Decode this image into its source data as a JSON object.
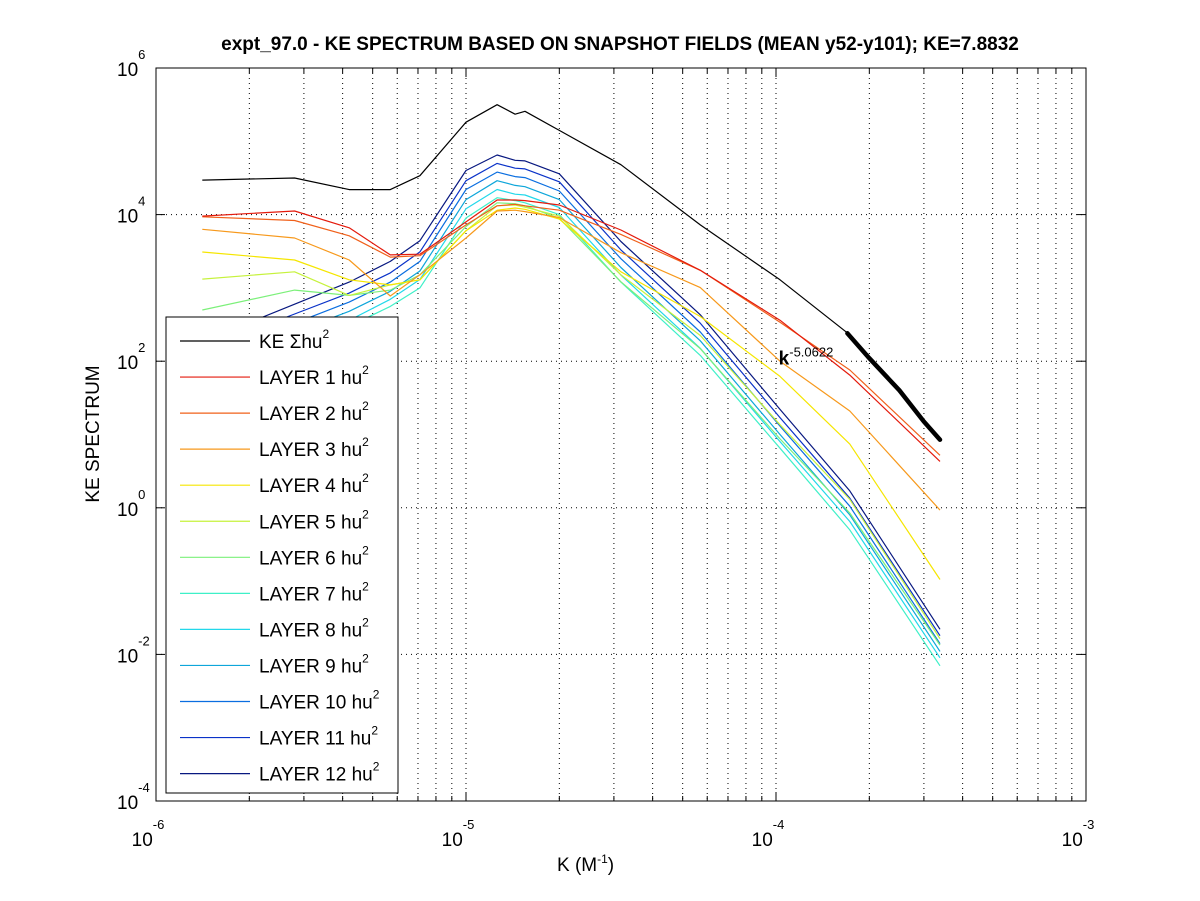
{
  "chart_data": {
    "type": "line",
    "title": "expt_97.0 - KE SPECTRUM BASED ON SNAPSHOT FIELDS (MEAN y52-y101); KE=7.8832",
    "xlabel": "K  (M",
    "xlabel_sup": "-1",
    "xlabel_close": ")",
    "ylabel": "KE SPECTRUM",
    "xscale": "log",
    "yscale": "log",
    "xlim": [
      1e-06,
      0.001
    ],
    "ylim": [
      0.0001,
      1000000.0
    ],
    "grid": true,
    "legend_position": "bottom-left",
    "x_ticks": [
      {
        "base": "10",
        "exp": "-6",
        "value": 1e-06
      },
      {
        "base": "10",
        "exp": "-5",
        "value": 1e-05
      },
      {
        "base": "10",
        "exp": "-4",
        "value": 0.0001
      },
      {
        "base": "10",
        "exp": "-3",
        "value": 0.001
      }
    ],
    "y_ticks": [
      {
        "base": "10",
        "exp": "6",
        "value": 1000000.0
      },
      {
        "base": "10",
        "exp": "4",
        "value": 10000.0
      },
      {
        "base": "10",
        "exp": "2",
        "value": 100.0
      },
      {
        "base": "10",
        "exp": "0",
        "value": 1.0
      },
      {
        "base": "10",
        "exp": "-2",
        "value": 0.01
      },
      {
        "base": "10",
        "exp": "-4",
        "value": 0.0001
      }
    ],
    "x": [
      1.41e-06,
      2.8e-06,
      4.2e-06,
      5.7e-06,
      7.1e-06,
      1e-05,
      1.26e-05,
      1.44e-05,
      1.55e-05,
      2e-05,
      3.16e-05,
      5.7e-05,
      0.000103,
      0.000173,
      0.000338
    ],
    "series": [
      {
        "name": "KE",
        "label": "KE Σhu",
        "sup": "2",
        "color": "#000000",
        "values": [
          29600,
          31600,
          21900,
          21900,
          33900,
          182000,
          316000,
          234000,
          257000,
          141000,
          47900,
          7240,
          1290,
          229,
          8.5
        ]
      },
      {
        "name": "LAYER 1",
        "label": "LAYER 1 hu",
        "sup": "2",
        "color": "#e41a0c",
        "values": [
          9550,
          11200,
          6610,
          2820,
          2880,
          7940,
          15800,
          15800,
          15500,
          13500,
          6170,
          1740,
          363,
          64.6,
          4.3
        ]
      },
      {
        "name": "LAYER 2",
        "label": "LAYER 2 hu",
        "sup": "2",
        "color": "#f0601a",
        "values": [
          9330,
          8320,
          5130,
          2630,
          2750,
          7240,
          13200,
          13800,
          13200,
          11500,
          5370,
          1740,
          339,
          75.9,
          5.2
        ]
      },
      {
        "name": "LAYER 3",
        "label": "LAYER 3 hu",
        "sup": "2",
        "color": "#f7991c",
        "values": [
          6310,
          4790,
          2400,
          776,
          1510,
          4790,
          11200,
          11500,
          11000,
          9120,
          3020,
          1010,
          100,
          20.9,
          0.93
        ]
      },
      {
        "name": "LAYER 4",
        "label": "LAYER 4 hu",
        "sup": "2",
        "color": "#f5e600",
        "values": [
          3090,
          2400,
          1290,
          1100,
          1290,
          6030,
          11500,
          12300,
          11800,
          8710,
          1660,
          407,
          62,
          7.4,
          0.105
        ]
      },
      {
        "name": "LAYER 5",
        "label": "LAYER 5 hu",
        "sup": "2",
        "color": "#c6f23c",
        "values": [
          1320,
          1660,
          790,
          1100,
          1290,
          6030,
          13200,
          13500,
          12600,
          9550,
          1510,
          224,
          13.6,
          1.3,
          0.0164
        ]
      },
      {
        "name": "LAYER 6",
        "label": "LAYER 6 hu",
        "sup": "2",
        "color": "#7cf07a",
        "values": [
          500,
          933,
          790,
          933,
          1510,
          6880,
          14500,
          14100,
          13200,
          8910,
          1210,
          148,
          8.7,
          0.85,
          0.0134
        ]
      },
      {
        "name": "LAYER 7",
        "label": "LAYER 7 hu",
        "sup": "2",
        "color": "#3ef0c8",
        "values": [
          null,
          null,
          300,
          560,
          1000,
          9000,
          17000,
          15500,
          14500,
          10000,
          1200,
          120,
          6.5,
          0.5,
          0.007
        ]
      },
      {
        "name": "LAYER 8",
        "label": "LAYER 8 hu",
        "sup": "2",
        "color": "#22d8ea",
        "values": [
          null,
          null,
          360,
          700,
          1300,
          12000,
          22000,
          19000,
          18500,
          12500,
          1500,
          150,
          8.0,
          0.65,
          0.009
        ]
      },
      {
        "name": "LAYER 9",
        "label": "LAYER 9 hu",
        "sup": "2",
        "color": "#0ea6da",
        "values": [
          null,
          250,
          480,
          900,
          1700,
          16000,
          29000,
          25000,
          24000,
          16000,
          1900,
          190,
          10.0,
          0.8,
          0.011
        ]
      },
      {
        "name": "LAYER 10",
        "label": "LAYER 10 hu",
        "sup": "2",
        "color": "#0a6ee0",
        "values": [
          null,
          330,
          640,
          1200,
          2300,
          22000,
          38000,
          33000,
          32000,
          21000,
          2500,
          250,
          13.0,
          1.05,
          0.014
        ]
      },
      {
        "name": "LAYER 11",
        "label": "LAYER 11 hu",
        "sup": "2",
        "color": "#0a32c8",
        "values": [
          null,
          440,
          850,
          1600,
          3100,
          29000,
          50000,
          43000,
          42000,
          28000,
          3300,
          330,
          17.0,
          1.35,
          0.018
        ]
      },
      {
        "name": "LAYER 12",
        "label": "LAYER 12 hu",
        "sup": "2",
        "color": "#081880",
        "values": [
          null,
          600,
          1200,
          2300,
          4400,
          40000,
          65000,
          55000,
          54000,
          36000,
          4300,
          430,
          22.0,
          1.7,
          0.022
        ]
      }
    ],
    "fit_line": {
      "label": "k",
      "exponent": "-5.0622",
      "color": "#000000",
      "x": [
        0.00017,
        0.0002,
        0.00025,
        0.0003,
        0.000338
      ],
      "values": [
        240,
        110,
        40,
        15,
        8.5
      ],
      "label_x": 0.000102,
      "label_y": 90
    }
  }
}
